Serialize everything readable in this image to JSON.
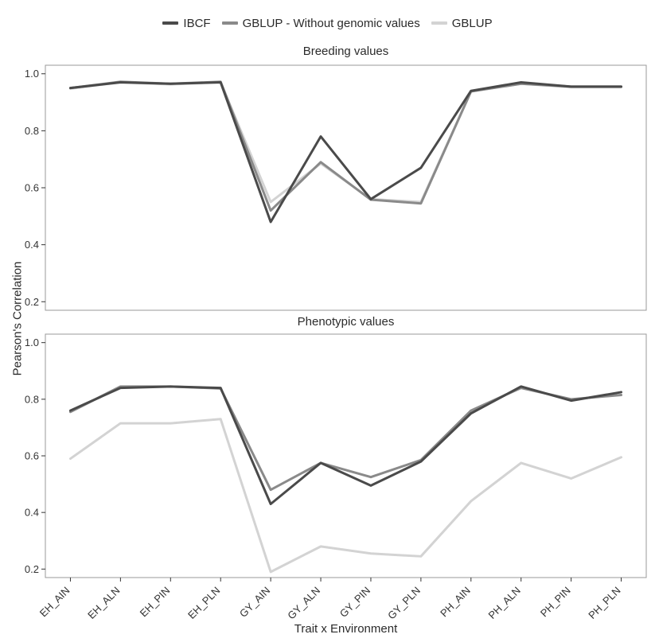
{
  "figure": {
    "ylabel": "Pearson's Correlation",
    "xlabel": "Trait x Environment"
  },
  "colors": {
    "ibcf": "#4a4a4a",
    "gblup_wgv": "#8a8a8a",
    "gblup": "#d3d3d3",
    "panel_border": "#9a9a9a",
    "tick_text": "#333333"
  },
  "legend": [
    {
      "label": "IBCF",
      "color": "#4a4a4a"
    },
    {
      "label": "GBLUP - Without genomic values",
      "color": "#8a8a8a"
    },
    {
      "label": "GBLUP",
      "color": "#d3d3d3"
    }
  ],
  "chart_data": [
    {
      "type": "line",
      "title": "Breeding values",
      "categories": [
        "EH_AIN",
        "EH_ALN",
        "EH_PIN",
        "EH_PLN",
        "GY_AIN",
        "GY_ALN",
        "GY_PIN",
        "GY_PLN",
        "PH_AIN",
        "PH_ALN",
        "PH_PIN",
        "PH_PLN"
      ],
      "ylim": [
        0.17,
        1.03
      ],
      "yticks": [
        0.2,
        0.4,
        0.6,
        0.8,
        1.0
      ],
      "grid": false,
      "legend_position": "top",
      "series": [
        {
          "name": "IBCF",
          "color": "#4a4a4a",
          "values": [
            0.95,
            0.97,
            0.965,
            0.97,
            0.48,
            0.78,
            0.56,
            0.67,
            0.94,
            0.97,
            0.955,
            0.955
          ]
        },
        {
          "name": "GBLUP - Without genomic values",
          "color": "#8a8a8a",
          "values": [
            0.95,
            0.972,
            0.965,
            0.972,
            0.52,
            0.69,
            0.558,
            0.545,
            0.938,
            0.965,
            0.955,
            0.955
          ]
        },
        {
          "name": "GBLUP",
          "color": "#d3d3d3",
          "values": [
            0.948,
            0.97,
            0.963,
            0.97,
            0.55,
            0.685,
            0.56,
            0.55,
            0.938,
            0.965,
            0.953,
            0.953
          ]
        }
      ]
    },
    {
      "type": "line",
      "title": "Phenotypic values",
      "categories": [
        "EH_AIN",
        "EH_ALN",
        "EH_PIN",
        "EH_PLN",
        "GY_AIN",
        "GY_ALN",
        "GY_PIN",
        "GY_PLN",
        "PH_AIN",
        "PH_ALN",
        "PH_PIN",
        "PH_PLN"
      ],
      "ylim": [
        0.17,
        1.03
      ],
      "yticks": [
        0.2,
        0.4,
        0.6,
        0.8,
        1.0
      ],
      "grid": false,
      "series": [
        {
          "name": "IBCF",
          "color": "#4a4a4a",
          "values": [
            0.76,
            0.84,
            0.845,
            0.84,
            0.43,
            0.575,
            0.495,
            0.58,
            0.75,
            0.845,
            0.795,
            0.825
          ]
        },
        {
          "name": "GBLUP - Without genomic values",
          "color": "#8a8a8a",
          "values": [
            0.755,
            0.845,
            0.845,
            0.838,
            0.48,
            0.575,
            0.525,
            0.585,
            0.76,
            0.84,
            0.8,
            0.815
          ]
        },
        {
          "name": "GBLUP",
          "color": "#d3d3d3",
          "values": [
            0.59,
            0.715,
            0.715,
            0.73,
            0.19,
            0.28,
            0.255,
            0.245,
            0.44,
            0.575,
            0.52,
            0.595
          ]
        }
      ]
    }
  ]
}
